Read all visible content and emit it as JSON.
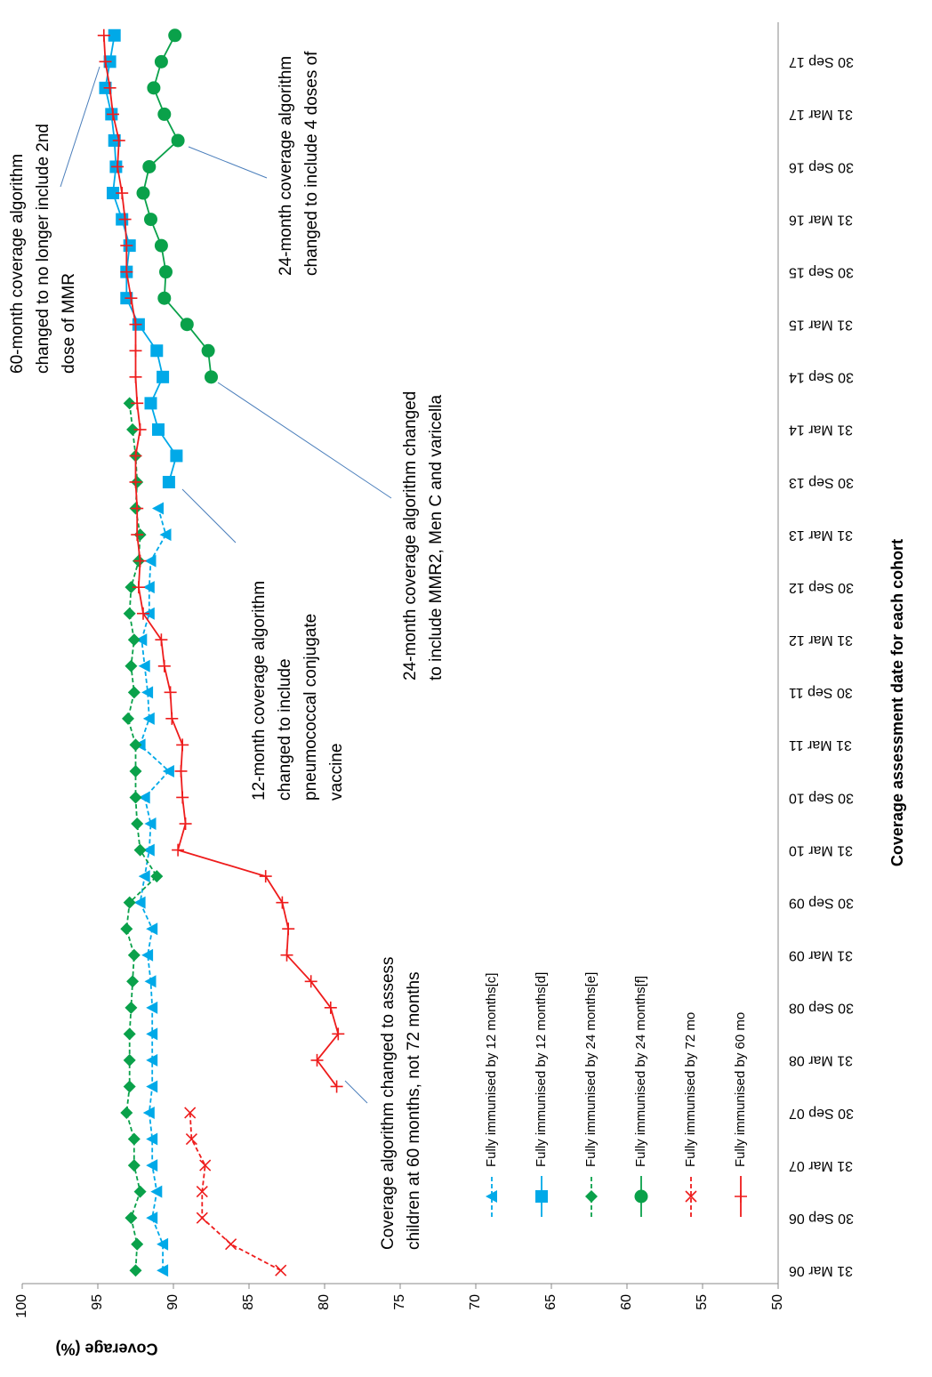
{
  "chart_data": {
    "type": "line",
    "x_label": "Coverage assessment date for each cohort",
    "y_label": "Coverage (%)",
    "categories": [
      "31 Mar 06",
      null,
      "30 Sep 06",
      null,
      "31 Mar 07",
      null,
      "30 Sep 07",
      null,
      "31 Mar 08",
      null,
      "30 Sep 08",
      null,
      "31 Mar 09",
      null,
      "30 Sep 09",
      null,
      "31 Mar 10",
      null,
      "30 Sep 10",
      null,
      "31 Mar 11",
      null,
      "30 Sep 11",
      null,
      "31 Mar 12",
      null,
      "30 Sep 12",
      null,
      "31 Mar 13",
      null,
      "30 Sep 13",
      null,
      "31 Mar 14",
      null,
      "30 Sep 14",
      null,
      "31 Mar 15",
      null,
      "30 Sep 15",
      null,
      "31 Mar 16",
      null,
      "30 Sep 16",
      null,
      "31 Mar 17",
      null,
      "30 Sep 17",
      null
    ],
    "ylim": [
      50,
      100
    ],
    "yticks": [
      50,
      55,
      60,
      65,
      70,
      75,
      80,
      85,
      90,
      95,
      100
    ],
    "grid": false,
    "legend": "inside",
    "series": [
      {
        "name": "Fully immunised by 12 months[c]",
        "color": "#00a9e8",
        "marker": "triangle",
        "dashed": true,
        "values": [
          90.7,
          90.7,
          91.4,
          91.1,
          91.4,
          91.4,
          91.6,
          91.4,
          91.4,
          91.4,
          91.4,
          91.5,
          91.7,
          91.4,
          92.2,
          91.9,
          91.6,
          91.5,
          91.9,
          90.3,
          92.2,
          91.6,
          91.7,
          91.9,
          92.1,
          91.6,
          91.6,
          91.5,
          90.5,
          91.0,
          null,
          null,
          null,
          null,
          null,
          null,
          null,
          null,
          null,
          null,
          null,
          null,
          null,
          null,
          null,
          null,
          null,
          null
        ]
      },
      {
        "name": "Fully immunised by 12 months[d]",
        "color": "#00a9e8",
        "marker": "square",
        "dashed": false,
        "values": [
          null,
          null,
          null,
          null,
          null,
          null,
          null,
          null,
          null,
          null,
          null,
          null,
          null,
          null,
          null,
          null,
          null,
          null,
          null,
          null,
          null,
          null,
          null,
          null,
          null,
          null,
          null,
          null,
          null,
          null,
          90.3,
          89.8,
          91.0,
          91.5,
          90.7,
          91.1,
          92.3,
          93.1,
          93.1,
          92.9,
          93.4,
          94.0,
          93.8,
          93.9,
          94.1,
          94.5,
          94.2,
          93.9
        ]
      },
      {
        "name": "Fully immunised by 24 months[e]",
        "color": "#0aa14a",
        "marker": "diamond",
        "dashed": true,
        "values": [
          92.5,
          92.4,
          92.8,
          92.2,
          92.6,
          92.6,
          93.1,
          92.9,
          92.9,
          92.9,
          92.8,
          92.7,
          92.6,
          93.1,
          92.9,
          91.1,
          92.2,
          92.4,
          92.5,
          92.5,
          92.5,
          93.0,
          92.6,
          92.8,
          92.6,
          92.9,
          92.8,
          92.3,
          92.2,
          92.5,
          92.4,
          92.5,
          92.7,
          92.9,
          null,
          null,
          null,
          null,
          null,
          null,
          null,
          null,
          null,
          null,
          null,
          null,
          null,
          null
        ]
      },
      {
        "name": "Fully immunised by 24 months[f]",
        "color": "#0aa14a",
        "marker": "circle",
        "dashed": false,
        "values": [
          null,
          null,
          null,
          null,
          null,
          null,
          null,
          null,
          null,
          null,
          null,
          null,
          null,
          null,
          null,
          null,
          null,
          null,
          null,
          null,
          null,
          null,
          null,
          null,
          null,
          null,
          null,
          null,
          null,
          null,
          null,
          null,
          null,
          null,
          87.5,
          87.7,
          89.1,
          90.6,
          90.5,
          90.8,
          91.5,
          92.0,
          91.6,
          89.7,
          90.6,
          91.3,
          90.8,
          89.9
        ]
      },
      {
        "name": "Fully immunised by 72 mo",
        "color": "#ee1c1c",
        "marker": "x",
        "dashed": true,
        "values": [
          82.9,
          86.2,
          88.1,
          88.1,
          87.9,
          88.8,
          88.9,
          null,
          null,
          null,
          null,
          null,
          null,
          null,
          null,
          null,
          null,
          null,
          null,
          null,
          null,
          null,
          null,
          null,
          null,
          null,
          null,
          null,
          null,
          null,
          null,
          null,
          null,
          null,
          null,
          null,
          null,
          null,
          null,
          null,
          null,
          null,
          null,
          null,
          null,
          null,
          null,
          null
        ]
      },
      {
        "name": "Fully immunised by 60 mo",
        "color": "#ee1c1c",
        "marker": "plus",
        "dashed": false,
        "values": [
          null,
          null,
          null,
          null,
          null,
          null,
          null,
          79.2,
          80.5,
          79.1,
          79.6,
          80.9,
          82.5,
          82.4,
          82.8,
          83.9,
          89.7,
          89.2,
          89.4,
          89.5,
          89.4,
          90.1,
          90.2,
          90.6,
          90.8,
          92.0,
          92.3,
          92.2,
          92.4,
          92.4,
          92.5,
          92.5,
          92.2,
          92.4,
          92.5,
          92.5,
          92.5,
          92.8,
          93.1,
          93.1,
          93.2,
          93.4,
          93.7,
          93.6,
          94.0,
          94.2,
          94.5,
          94.6
        ]
      }
    ],
    "annotations": [
      {
        "lines": [
          "Coverage algorithm changed to assess",
          "children at 60 months, not 72 months"
        ]
      },
      {
        "lines": [
          "12-month coverage algorithm",
          "changed to include",
          "pneumococcal conjugate",
          "vaccine"
        ]
      },
      {
        "lines": [
          "24-month coverage algorithm changed",
          "to include MMR2, Men C and varicella"
        ]
      },
      {
        "lines": [
          "24-month coverage algorithm",
          "changed to include 4 doses of"
        ]
      },
      {
        "lines": [
          "60-month coverage algorithm",
          "changed to no longer include 2nd",
          "dose of MMR"
        ]
      }
    ]
  }
}
